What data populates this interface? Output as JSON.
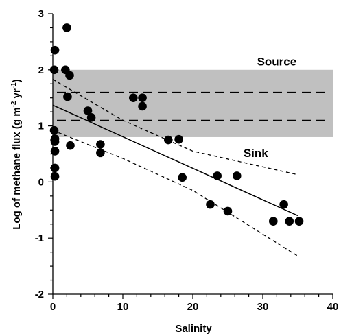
{
  "chart_data": {
    "type": "scatter",
    "title": "",
    "xlabel": "Salinity",
    "ylabel_main": "Log of methane flux (g m",
    "ylabel_sup1": "-2",
    "ylabel_mid": " yr",
    "ylabel_sup2": "-1",
    "ylabel_end": ")",
    "xlim": [
      0,
      40
    ],
    "ylim": [
      -2,
      3
    ],
    "x_ticks": [
      0,
      10,
      20,
      30,
      40
    ],
    "y_ticks": [
      -2,
      -1,
      0,
      1,
      2,
      3
    ],
    "x_tick_labels": [
      "0",
      "10",
      "20",
      "30",
      "40"
    ],
    "y_tick_labels": [
      "-2",
      "-1",
      "0",
      "1",
      "2",
      "3"
    ],
    "grid": false,
    "shaded_band": {
      "y_from": 0.8,
      "y_to": 2.0,
      "color": "#c0c0c0"
    },
    "dashed_levels": [
      1.6,
      1.1
    ],
    "region_labels": [
      {
        "text": "Source",
        "x": 32,
        "y": 2.15
      },
      {
        "text": "Sink",
        "x": 29,
        "y": 0.52
      }
    ],
    "regression_line": {
      "x": [
        0,
        35
      ],
      "y": [
        1.37,
        -0.6
      ]
    },
    "confidence_bands": [
      {
        "x": [
          0,
          10,
          20,
          35
        ],
        "y": [
          1.83,
          1.1,
          0.55,
          0.13
        ]
      },
      {
        "x": [
          0,
          10,
          20,
          35
        ],
        "y": [
          0.92,
          0.42,
          -0.15,
          -1.32
        ]
      }
    ],
    "points": [
      {
        "x": 0.2,
        "y": 2.0
      },
      {
        "x": 0.3,
        "y": 2.35
      },
      {
        "x": 2.0,
        "y": 2.75
      },
      {
        "x": 1.8,
        "y": 2.0
      },
      {
        "x": 2.4,
        "y": 1.9
      },
      {
        "x": 2.1,
        "y": 1.52
      },
      {
        "x": 0.2,
        "y": 0.92
      },
      {
        "x": 0.3,
        "y": 0.77
      },
      {
        "x": 0.3,
        "y": 0.72
      },
      {
        "x": 0.3,
        "y": 0.55
      },
      {
        "x": 0.3,
        "y": 0.25
      },
      {
        "x": 0.3,
        "y": 0.1
      },
      {
        "x": 2.5,
        "y": 0.65
      },
      {
        "x": 5.0,
        "y": 1.27
      },
      {
        "x": 5.5,
        "y": 1.15
      },
      {
        "x": 6.8,
        "y": 0.67
      },
      {
        "x": 6.8,
        "y": 0.52
      },
      {
        "x": 11.5,
        "y": 1.5
      },
      {
        "x": 12.8,
        "y": 1.5
      },
      {
        "x": 12.8,
        "y": 1.35
      },
      {
        "x": 16.5,
        "y": 0.75
      },
      {
        "x": 18.0,
        "y": 0.76
      },
      {
        "x": 18.5,
        "y": 0.08
      },
      {
        "x": 22.5,
        "y": -0.4
      },
      {
        "x": 23.5,
        "y": 0.11
      },
      {
        "x": 25.0,
        "y": -0.52
      },
      {
        "x": 26.3,
        "y": 0.11
      },
      {
        "x": 31.5,
        "y": -0.7
      },
      {
        "x": 33.0,
        "y": -0.4
      },
      {
        "x": 33.8,
        "y": -0.7
      },
      {
        "x": 35.2,
        "y": -0.7
      }
    ]
  }
}
